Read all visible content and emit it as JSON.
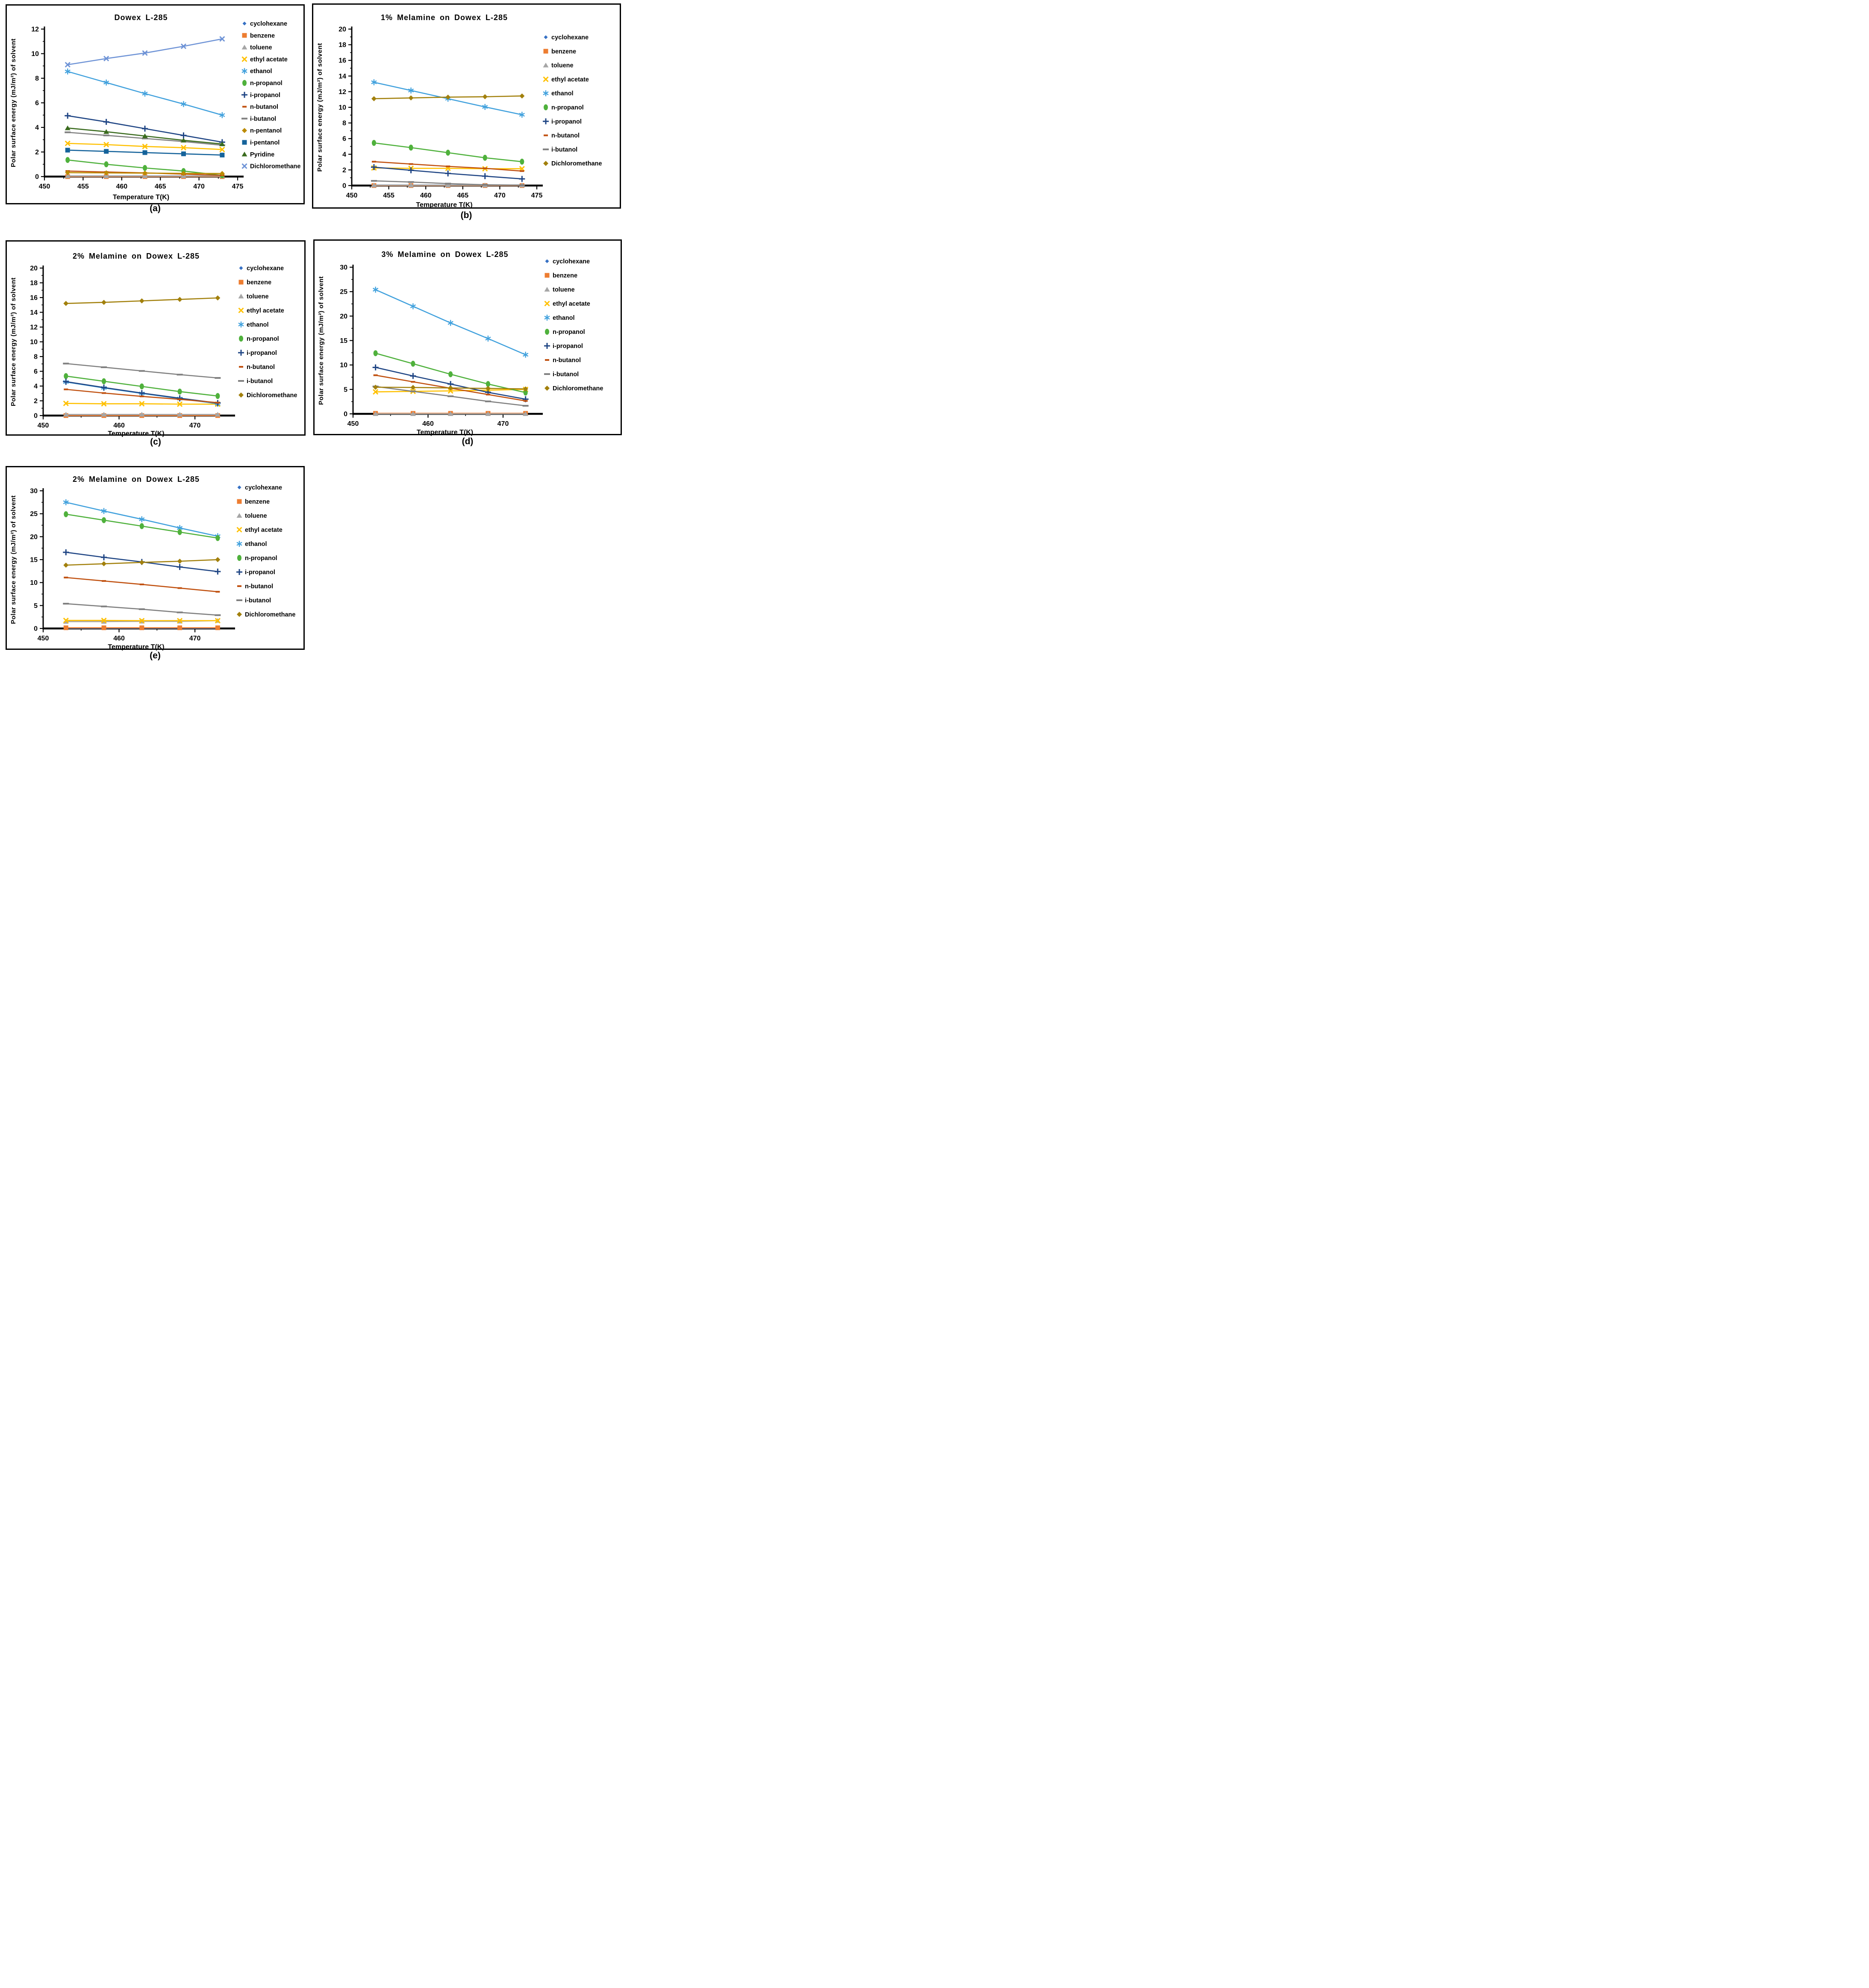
{
  "figure": {
    "background": "#ffffff"
  },
  "chart_data": [
    {
      "id": "a",
      "type": "line",
      "caption": "(a)",
      "title": "Dowex L-285",
      "xlabel": "Temperature T(K)",
      "ylabel": "Polar surface energy (mJ/m²) of solvent",
      "legend_position": "right",
      "x_range": [
        450,
        475
      ],
      "x_ticks": [
        450,
        455,
        460,
        465,
        470,
        475
      ],
      "x_minor_ticks": [
        452.5,
        457.5,
        462.5,
        467.5,
        472.5
      ],
      "y_range": [
        0,
        12
      ],
      "y_ticks": [
        0,
        2,
        4,
        6,
        8,
        10,
        12
      ],
      "y_minor_ticks": [
        1,
        3,
        5,
        7,
        9,
        11
      ],
      "x": [
        453,
        458,
        463,
        468,
        473
      ],
      "series": [
        {
          "name": "cyclohexane",
          "color": "#3570C4",
          "marker": "diamond-small",
          "values": [
            0.05,
            0.05,
            0.05,
            0.05,
            0.05
          ]
        },
        {
          "name": "benzene",
          "color": "#ED7D31",
          "marker": "square",
          "values": [
            0,
            0,
            0,
            0,
            0
          ]
        },
        {
          "name": "toluene",
          "color": "#A6A6A6",
          "marker": "triangle",
          "values": [
            0.05,
            0.05,
            0.05,
            0.05,
            0.05
          ]
        },
        {
          "name": "ethyl acetate",
          "color": "#FFC000",
          "marker": "x",
          "values": [
            2.7,
            2.6,
            2.45,
            2.35,
            2.2
          ]
        },
        {
          "name": "ethanol",
          "color": "#41A1DD",
          "marker": "asterisk",
          "values": [
            8.55,
            7.65,
            6.75,
            5.9,
            5.0
          ]
        },
        {
          "name": "n-propanol",
          "color": "#4FB13C",
          "marker": "circle",
          "values": [
            1.35,
            1.0,
            0.7,
            0.45,
            0.1
          ]
        },
        {
          "name": "i-propanol",
          "color": "#1F4584",
          "marker": "plus",
          "values": [
            4.95,
            4.45,
            3.9,
            3.35,
            2.8
          ]
        },
        {
          "name": "n-butanol",
          "color": "#C0500F",
          "marker": "dash-short",
          "values": [
            0.45,
            0.37,
            0.3,
            0.2,
            0.1
          ]
        },
        {
          "name": "i-butanol",
          "color": "#7F7F7F",
          "marker": "dash-long",
          "values": [
            3.6,
            3.35,
            3.1,
            2.85,
            2.55
          ]
        },
        {
          "name": "n-pentanol",
          "color": "#BC8B00",
          "marker": "diamond",
          "values": [
            0.32,
            0.3,
            0.28,
            0.26,
            0.25
          ]
        },
        {
          "name": "i-pentanol",
          "color": "#15639B",
          "marker": "square",
          "values": [
            2.15,
            2.05,
            1.95,
            1.85,
            1.75
          ]
        },
        {
          "name": "Pyridine",
          "color": "#3A6B1E",
          "marker": "triangle",
          "values": [
            3.95,
            3.65,
            3.3,
            2.95,
            2.65
          ]
        },
        {
          "name": "Dichloromethane",
          "color": "#6E93D6",
          "marker": "x",
          "values": [
            9.1,
            9.6,
            10.05,
            10.6,
            11.2
          ]
        }
      ]
    },
    {
      "id": "b",
      "type": "line",
      "caption": "(b)",
      "title": "1% Melamine on Dowex L-285",
      "xlabel": "Temperature T(K)",
      "ylabel": "Polar surface energy (mJ/m²) of solvent",
      "legend_position": "right",
      "x_range": [
        450,
        475
      ],
      "x_ticks": [
        450,
        455,
        460,
        465,
        470,
        475
      ],
      "x_minor_ticks": [
        452.5,
        457.5,
        462.5,
        467.5,
        472.5
      ],
      "y_range": [
        0,
        20
      ],
      "y_ticks": [
        0,
        2,
        4,
        6,
        8,
        10,
        12,
        14,
        16,
        18,
        20
      ],
      "y_minor_ticks": [
        1,
        3,
        5,
        7,
        9,
        11,
        13,
        15,
        17,
        19
      ],
      "x": [
        453,
        458,
        463,
        468,
        473
      ],
      "series": [
        {
          "name": "cyclohexane",
          "color": "#3570C4",
          "marker": "diamond-small",
          "values": [
            0.05,
            0.05,
            0.05,
            0.05,
            0.05
          ]
        },
        {
          "name": "benzene",
          "color": "#ED7D31",
          "marker": "square",
          "values": [
            0,
            0,
            0,
            0,
            0
          ]
        },
        {
          "name": "toluene",
          "color": "#A6A6A6",
          "marker": "triangle",
          "values": [
            0.05,
            0.05,
            0.05,
            0.05,
            0.05
          ]
        },
        {
          "name": "ethyl acetate",
          "color": "#FFC000",
          "marker": "x",
          "values": [
            2.25,
            2.2,
            2.2,
            2.15,
            2.15
          ]
        },
        {
          "name": "ethanol",
          "color": "#41A1DD",
          "marker": "asterisk",
          "values": [
            13.2,
            12.15,
            11.1,
            10.05,
            9.05
          ]
        },
        {
          "name": "n-propanol",
          "color": "#4FB13C",
          "marker": "circle",
          "values": [
            5.45,
            4.85,
            4.2,
            3.55,
            3.05
          ]
        },
        {
          "name": "i-propanol",
          "color": "#1F4584",
          "marker": "plus",
          "values": [
            2.35,
            1.95,
            1.55,
            1.2,
            0.85
          ]
        },
        {
          "name": "n-butanol",
          "color": "#C0500F",
          "marker": "dash-short",
          "values": [
            3.05,
            2.75,
            2.45,
            2.2,
            1.85
          ]
        },
        {
          "name": "i-butanol",
          "color": "#7F7F7F",
          "marker": "dash-long",
          "values": [
            0.6,
            0.45,
            0.25,
            0.1,
            0.05
          ]
        },
        {
          "name": "Dichloromethane",
          "color": "#A2800C",
          "marker": "diamond",
          "values": [
            11.1,
            11.2,
            11.3,
            11.35,
            11.45
          ]
        }
      ]
    },
    {
      "id": "c",
      "type": "line",
      "caption": "(c)",
      "title": "2% Melamine on Dowex L-285",
      "xlabel": "Temperature T(K)",
      "ylabel": "Polar surface energy (mJ/m²) of solvent",
      "legend_position": "right",
      "x_range": [
        450,
        474.5
      ],
      "x_ticks": [
        450,
        460,
        470
      ],
      "x_minor_ticks": [
        455,
        465
      ],
      "y_range": [
        0,
        20
      ],
      "y_ticks": [
        0,
        2,
        4,
        6,
        8,
        10,
        12,
        14,
        16,
        18,
        20
      ],
      "y_minor_ticks": [
        1,
        3,
        5,
        7,
        9,
        11,
        13,
        15,
        17,
        19
      ],
      "x": [
        453,
        458,
        463,
        468,
        473
      ],
      "series": [
        {
          "name": "cyclohexane",
          "color": "#3570C4",
          "marker": "diamond-small",
          "values": [
            0.05,
            0.05,
            0.05,
            0.05,
            0.05
          ]
        },
        {
          "name": "benzene",
          "color": "#ED7D31",
          "marker": "square",
          "values": [
            0,
            0,
            0,
            0,
            0
          ]
        },
        {
          "name": "toluene",
          "color": "#A6A6A6",
          "marker": "triangle",
          "values": [
            0.15,
            0.15,
            0.15,
            0.15,
            0.15
          ]
        },
        {
          "name": "ethyl acetate",
          "color": "#FFC000",
          "marker": "x",
          "values": [
            1.65,
            1.6,
            1.6,
            1.55,
            1.55
          ]
        },
        {
          "name": "ethanol",
          "color": "#41A1DD",
          "marker": "asterisk",
          "values": [
            4.55,
            3.75,
            3.0,
            2.3,
            1.6
          ]
        },
        {
          "name": "n-propanol",
          "color": "#4FB13C",
          "marker": "circle",
          "values": [
            5.35,
            4.65,
            3.95,
            3.25,
            2.65
          ]
        },
        {
          "name": "i-propanol",
          "color": "#1F4584",
          "marker": "plus",
          "values": [
            4.6,
            3.8,
            3.05,
            2.35,
            1.7
          ]
        },
        {
          "name": "n-butanol",
          "color": "#C0500F",
          "marker": "dash-short",
          "values": [
            3.55,
            3.05,
            2.6,
            2.2,
            1.75
          ]
        },
        {
          "name": "i-butanol",
          "color": "#7F7F7F",
          "marker": "dash-long",
          "values": [
            7.05,
            6.55,
            6.05,
            5.55,
            5.1
          ]
        },
        {
          "name": "Dichloromethane",
          "color": "#A2800C",
          "marker": "diamond",
          "values": [
            15.2,
            15.35,
            15.55,
            15.75,
            15.95
          ]
        }
      ]
    },
    {
      "id": "d",
      "type": "line",
      "caption": "(d)",
      "title": "3% Melamine on Dowex L-285",
      "xlabel": "Temperature T(K)",
      "ylabel": "Polar surface energy (mJ/m²) of solvent",
      "legend_position": "right",
      "x_range": [
        450,
        474.5
      ],
      "x_ticks": [
        450,
        460,
        470
      ],
      "x_minor_ticks": [
        455,
        465
      ],
      "y_range": [
        0,
        30
      ],
      "y_ticks": [
        0,
        5,
        10,
        15,
        20,
        25,
        30
      ],
      "y_minor_ticks": [
        2.5,
        7.5,
        12.5,
        17.5,
        22.5,
        27.5
      ],
      "x": [
        453,
        458,
        463,
        468,
        473
      ],
      "series": [
        {
          "name": "cyclohexane",
          "color": "#3570C4",
          "marker": "diamond-small",
          "values": [
            0.05,
            0.05,
            0.05,
            0.05,
            0.05
          ]
        },
        {
          "name": "benzene",
          "color": "#ED7D31",
          "marker": "square",
          "values": [
            0.1,
            0.1,
            0.1,
            0.1,
            0.1
          ]
        },
        {
          "name": "toluene",
          "color": "#A6A6A6",
          "marker": "triangle",
          "values": [
            0,
            0,
            0,
            0,
            0
          ]
        },
        {
          "name": "ethyl acetate",
          "color": "#FFC000",
          "marker": "x",
          "values": [
            4.5,
            4.6,
            4.7,
            4.85,
            5.0
          ]
        },
        {
          "name": "ethanol",
          "color": "#41A1DD",
          "marker": "asterisk",
          "values": [
            25.4,
            22.0,
            18.6,
            15.4,
            12.1
          ]
        },
        {
          "name": "n-propanol",
          "color": "#4FB13C",
          "marker": "circle",
          "values": [
            12.4,
            10.25,
            8.1,
            6.1,
            4.35
          ]
        },
        {
          "name": "i-propanol",
          "color": "#1F4584",
          "marker": "plus",
          "values": [
            9.5,
            7.75,
            6.1,
            4.4,
            3.0
          ]
        },
        {
          "name": "n-butanol",
          "color": "#C0500F",
          "marker": "dash-short",
          "values": [
            7.9,
            6.55,
            5.25,
            3.95,
            2.65
          ]
        },
        {
          "name": "i-butanol",
          "color": "#7F7F7F",
          "marker": "dash-long",
          "values": [
            5.6,
            4.6,
            3.6,
            2.55,
            1.65
          ]
        },
        {
          "name": "Dichloromethane",
          "color": "#A2800C",
          "marker": "diamond",
          "values": [
            5.45,
            5.4,
            5.3,
            5.2,
            5.1
          ]
        }
      ]
    },
    {
      "id": "e",
      "type": "line",
      "caption": "(e)",
      "title": "2% Melamine on Dowex L-285",
      "xlabel": "Temperature T(K)",
      "ylabel": "Polar surface energy (mJ/m²) of solvent",
      "legend_position": "right",
      "x_range": [
        450,
        474.5
      ],
      "x_ticks": [
        450,
        460,
        470
      ],
      "x_minor_ticks": [
        455,
        465
      ],
      "y_range": [
        0,
        30
      ],
      "y_ticks": [
        0,
        5,
        10,
        15,
        20,
        25,
        30
      ],
      "y_minor_ticks": [
        2.5,
        7.5,
        12.5,
        17.5,
        22.5,
        27.5
      ],
      "x": [
        453,
        458,
        463,
        468,
        473
      ],
      "series": [
        {
          "name": "cyclohexane",
          "color": "#3570C4",
          "marker": "diamond-small",
          "values": [
            0.05,
            0.05,
            0.05,
            0.05,
            0.05
          ]
        },
        {
          "name": "benzene",
          "color": "#ED7D31",
          "marker": "square",
          "values": [
            0.15,
            0.15,
            0.15,
            0.15,
            0.15
          ]
        },
        {
          "name": "toluene",
          "color": "#A6A6A6",
          "marker": "triangle",
          "values": [
            1.5,
            1.5,
            1.55,
            1.55,
            1.7
          ]
        },
        {
          "name": "ethyl acetate",
          "color": "#FFC000",
          "marker": "x",
          "values": [
            1.75,
            1.75,
            1.7,
            1.7,
            1.7
          ]
        },
        {
          "name": "ethanol",
          "color": "#41A1DD",
          "marker": "asterisk",
          "values": [
            27.5,
            25.6,
            23.8,
            21.9,
            20.1
          ]
        },
        {
          "name": "n-propanol",
          "color": "#4FB13C",
          "marker": "circle",
          "values": [
            24.9,
            23.6,
            22.3,
            21.0,
            19.7
          ]
        },
        {
          "name": "i-propanol",
          "color": "#1F4584",
          "marker": "plus",
          "values": [
            16.6,
            15.5,
            14.5,
            13.4,
            12.4
          ]
        },
        {
          "name": "n-butanol",
          "color": "#C0500F",
          "marker": "dash-short",
          "values": [
            11.1,
            10.35,
            9.6,
            8.8,
            8.0
          ]
        },
        {
          "name": "i-butanol",
          "color": "#7F7F7F",
          "marker": "dash-long",
          "values": [
            5.4,
            4.8,
            4.2,
            3.5,
            2.9
          ]
        },
        {
          "name": "Dichloromethane",
          "color": "#A2800C",
          "marker": "diamond",
          "values": [
            13.8,
            14.1,
            14.4,
            14.65,
            15.0
          ]
        }
      ]
    }
  ]
}
